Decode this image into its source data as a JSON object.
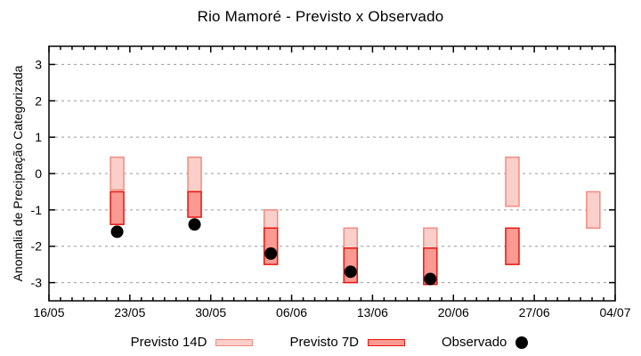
{
  "window": {
    "title": "Rio Mamoré - Previsto x Observado"
  },
  "chart_data": {
    "type": "bar",
    "title": "Rio Mamoré - Previsto x Observado",
    "xlabel": "",
    "ylabel": "Anomalia de Preciptação Categorizada",
    "ylim": [
      -3.5,
      3.5
    ],
    "yticks": [
      -3,
      -2,
      -1,
      0,
      1,
      2,
      3
    ],
    "grid": "horizontal dashed",
    "legend_position": "bottom-center",
    "x_axis": {
      "range_days": [
        0,
        49
      ],
      "major_tick_days": [
        0,
        7,
        14,
        21,
        28,
        35,
        42,
        49
      ],
      "major_tick_labels": [
        "16/05",
        "23/05",
        "30/05",
        "06/06",
        "13/06",
        "20/06",
        "27/06",
        "04/07"
      ],
      "minor_tick_step_days": 1
    },
    "legend": [
      {
        "label": "Previsto 14D",
        "swatch": "light-pink-bar"
      },
      {
        "label": "Previsto 7D",
        "swatch": "red-bar"
      },
      {
        "label": "Observado",
        "swatch": "black-dot"
      }
    ],
    "clusters": [
      {
        "day": 5.9,
        "previsto_14d": [
          0.45,
          -0.45
        ],
        "previsto_7d": [
          -0.5,
          -1.4
        ],
        "observado": -1.6
      },
      {
        "day": 12.6,
        "previsto_14d": [
          0.45,
          -0.5
        ],
        "previsto_7d": [
          -0.5,
          -1.2
        ],
        "observado": -1.4
      },
      {
        "day": 19.2,
        "previsto_14d": [
          -1.0,
          -1.5
        ],
        "previsto_7d": [
          -1.5,
          -2.5
        ],
        "observado": -2.2
      },
      {
        "day": 26.1,
        "previsto_14d": [
          -1.5,
          -2.05
        ],
        "previsto_7d": [
          -2.05,
          -3.0
        ],
        "observado": -2.7
      },
      {
        "day": 33.0,
        "previsto_14d": [
          -1.5,
          -2.05
        ],
        "previsto_7d": [
          -2.05,
          -3.05
        ],
        "observado": -2.9
      },
      {
        "day": 40.1,
        "previsto_14d": [
          0.45,
          -0.9
        ],
        "previsto_7d": [
          -1.5,
          -2.5
        ],
        "observado": null
      },
      {
        "day": 47.1,
        "previsto_14d": [
          -0.5,
          -1.5
        ],
        "previsto_7d": null,
        "observado": null
      }
    ],
    "colors": {
      "previsto_14d_fill": "#fbcfc9",
      "previsto_14d_border": "#f18b7f",
      "previsto_7d_fill": "#fa9a92",
      "previsto_7d_border": "#e8150e",
      "observado": "#000000",
      "grid": "#999999",
      "axis": "#000000"
    }
  }
}
